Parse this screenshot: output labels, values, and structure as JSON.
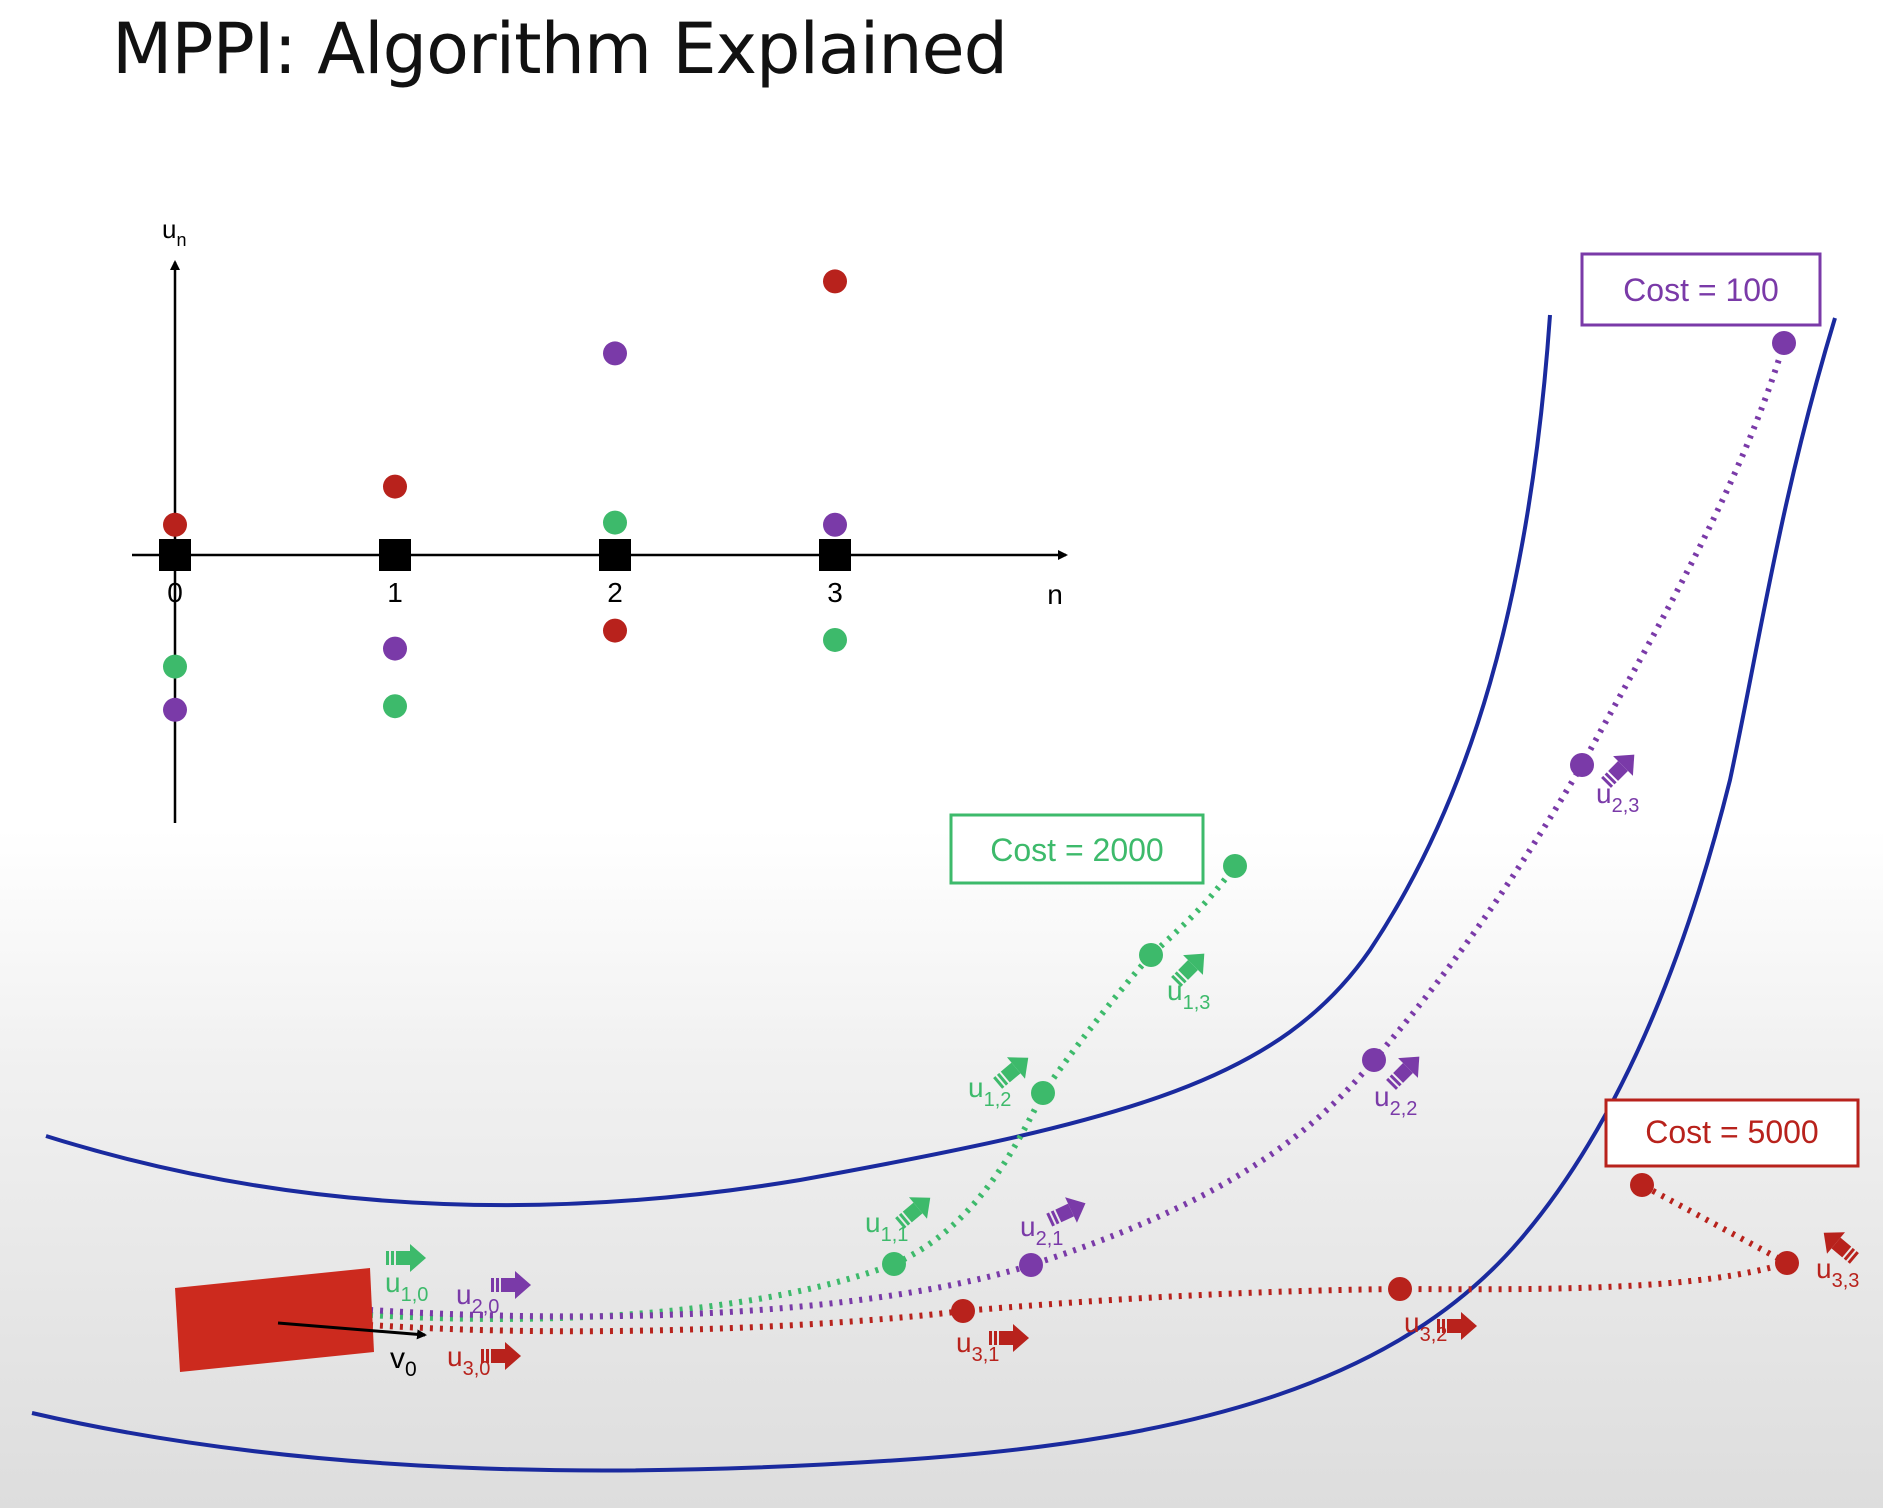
{
  "title": "MPPI: Algorithm Explained",
  "colors": {
    "trajectory_1": "#3dba6b",
    "trajectory_2": "#7a3aa8",
    "trajectory_3": "#b8221c",
    "road": "#1a2a9e",
    "car": "#cc2a1e",
    "axis": "#000000"
  },
  "plot": {
    "y_axis_label": "u",
    "y_axis_sub": "n",
    "x_axis_label": "n",
    "ticks": [
      "0",
      "1",
      "2",
      "3"
    ],
    "samples": [
      {
        "series": "trajectory_3",
        "n": 0,
        "u": 0.42
      },
      {
        "series": "trajectory_1",
        "n": 0,
        "u": -1.55
      },
      {
        "series": "trajectory_2",
        "n": 0,
        "u": -2.15
      },
      {
        "series": "trajectory_3",
        "n": 1,
        "u": 0.95
      },
      {
        "series": "trajectory_2",
        "n": 1,
        "u": -1.3
      },
      {
        "series": "trajectory_1",
        "n": 1,
        "u": -2.1
      },
      {
        "series": "trajectory_2",
        "n": 2,
        "u": 2.8
      },
      {
        "series": "trajectory_1",
        "n": 2,
        "u": 0.45
      },
      {
        "series": "trajectory_3",
        "n": 2,
        "u": -1.05
      },
      {
        "series": "trajectory_3",
        "n": 3,
        "u": 3.8
      },
      {
        "series": "trajectory_2",
        "n": 3,
        "u": 0.42
      },
      {
        "series": "trajectory_1",
        "n": 3,
        "u": -1.18
      }
    ]
  },
  "scene": {
    "car_velocity": {
      "base": "v",
      "sub": "0"
    },
    "costs": [
      {
        "series": "trajectory_1",
        "text": "Cost = 2000"
      },
      {
        "series": "trajectory_2",
        "text": "Cost = 100"
      },
      {
        "series": "trajectory_3",
        "text": "Cost = 5000"
      }
    ],
    "controls": [
      {
        "series": "trajectory_1",
        "base": "u",
        "sub": "1,0"
      },
      {
        "series": "trajectory_1",
        "base": "u",
        "sub": "1,1"
      },
      {
        "series": "trajectory_1",
        "base": "u",
        "sub": "1,2"
      },
      {
        "series": "trajectory_1",
        "base": "u",
        "sub": "1,3"
      },
      {
        "series": "trajectory_2",
        "base": "u",
        "sub": "2,0"
      },
      {
        "series": "trajectory_2",
        "base": "u",
        "sub": "2,1"
      },
      {
        "series": "trajectory_2",
        "base": "u",
        "sub": "2,2"
      },
      {
        "series": "trajectory_2",
        "base": "u",
        "sub": "2,3"
      },
      {
        "series": "trajectory_3",
        "base": "u",
        "sub": "3,0"
      },
      {
        "series": "trajectory_3",
        "base": "u",
        "sub": "3,1"
      },
      {
        "series": "trajectory_3",
        "base": "u",
        "sub": "3,2"
      },
      {
        "series": "trajectory_3",
        "base": "u",
        "sub": "3,3"
      }
    ]
  }
}
